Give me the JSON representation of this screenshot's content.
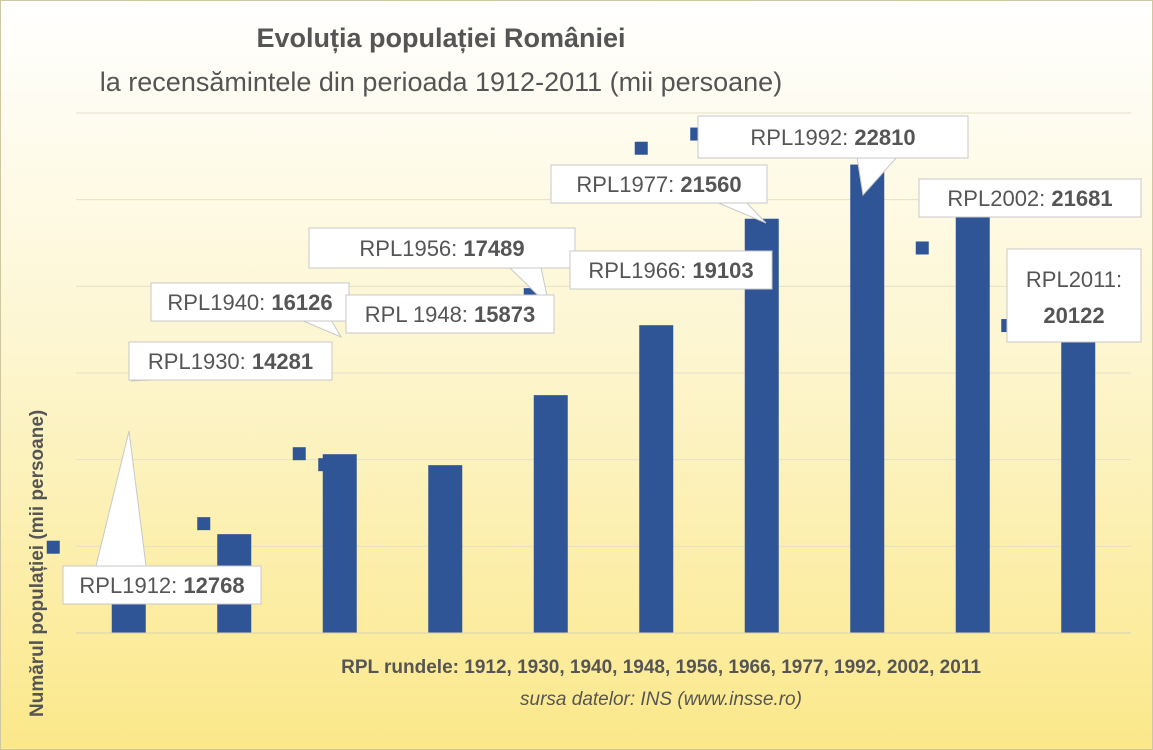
{
  "chart_data": {
    "type": "bar",
    "title": "Evoluția populației României",
    "subtitle": "la recensămintele din perioada 1912-2011 (mii persoane)",
    "ylabel": "Numărul populației (mii persoane)",
    "xlabel": "RPL rundele: 1912, 1930, 1940, 1948, 1956, 1966, 1977, 1992, 2002, 2011",
    "source": "sursa datelor: INS (www.insse.ro)",
    "categories": [
      "1912",
      "1930",
      "1940",
      "1948",
      "1956",
      "1966",
      "1977",
      "1992",
      "2002",
      "2011"
    ],
    "values": [
      12768,
      14281,
      16126,
      15873,
      17489,
      19103,
      21560,
      22810,
      21681,
      20122
    ],
    "data_labels": [
      {
        "prefix": "RPL1912: ",
        "value": "12768"
      },
      {
        "prefix": "RPL1930: ",
        "value": "14281"
      },
      {
        "prefix": "RPL1940: ",
        "value": "16126"
      },
      {
        "prefix": "RPL 1948: ",
        "value": "15873"
      },
      {
        "prefix": "RPL1956: ",
        "value": "17489"
      },
      {
        "prefix": "RPL1966: ",
        "value": "19103"
      },
      {
        "prefix": "RPL1977: ",
        "value": "21560"
      },
      {
        "prefix": "RPL1992: ",
        "value": "22810"
      },
      {
        "prefix": "RPL2002: ",
        "value": "21681"
      },
      {
        "prefix": "RPL2011: ",
        "value": "20122"
      }
    ],
    "ylim": [
      12000,
      24000
    ],
    "grid": true,
    "legend": "none",
    "colors": {
      "bar": "#2f5597",
      "grid": "#e6e0c8",
      "label_border": "#c8c8c8"
    }
  }
}
